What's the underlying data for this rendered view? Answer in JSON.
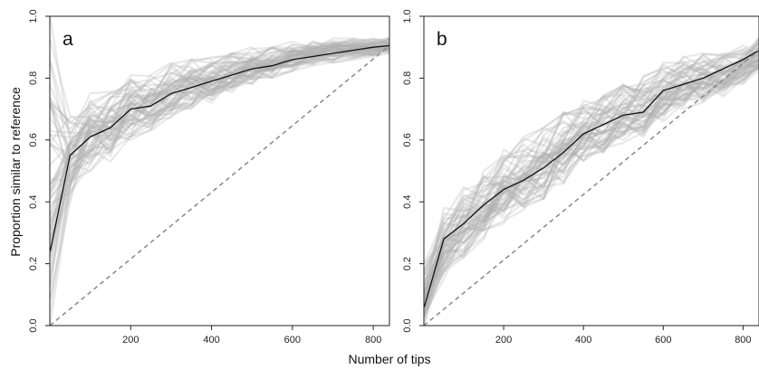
{
  "figure": {
    "xlabel": "Number of tips",
    "ylabel": "Proportion similar to reference"
  },
  "chart_data": [
    {
      "type": "line",
      "panel_label": "a",
      "xlim": [
        0,
        840
      ],
      "ylim": [
        0,
        1
      ],
      "x_ticks": [
        200,
        400,
        600,
        800
      ],
      "y_ticks": [
        0.0,
        0.2,
        0.4,
        0.6,
        0.8,
        1.0
      ],
      "x_tick_labels": [
        "200",
        "400",
        "600",
        "800"
      ],
      "y_tick_labels": [
        "0.0",
        "0.2",
        "0.4",
        "0.6",
        "0.8",
        "1.0"
      ],
      "grid": false,
      "colors": {
        "mean": "#111111",
        "replicates": "#b0b0b0",
        "diagonal": "#888888"
      },
      "series": [
        {
          "style": "mean",
          "x": [
            1,
            50,
            100,
            150,
            200,
            250,
            300,
            350,
            400,
            450,
            500,
            550,
            600,
            650,
            700,
            750,
            800,
            840
          ],
          "y": [
            0.24,
            0.55,
            0.61,
            0.64,
            0.7,
            0.71,
            0.75,
            0.77,
            0.79,
            0.81,
            0.83,
            0.84,
            0.86,
            0.87,
            0.88,
            0.89,
            0.9,
            0.905
          ]
        },
        {
          "style": "reference-diagonal",
          "x": [
            0,
            840
          ],
          "y": [
            0,
            0.905
          ]
        }
      ],
      "replicate_band": {
        "x": [
          1,
          50,
          100,
          150,
          200,
          250,
          300,
          350,
          400,
          450,
          500,
          550,
          600,
          650,
          700,
          750,
          800,
          840
        ],
        "low": [
          0.0,
          0.4,
          0.5,
          0.53,
          0.6,
          0.63,
          0.67,
          0.7,
          0.72,
          0.75,
          0.78,
          0.8,
          0.82,
          0.84,
          0.85,
          0.86,
          0.87,
          0.88
        ],
        "high": [
          1.0,
          0.72,
          0.76,
          0.77,
          0.81,
          0.82,
          0.85,
          0.86,
          0.87,
          0.88,
          0.9,
          0.9,
          0.92,
          0.92,
          0.93,
          0.93,
          0.93,
          0.93
        ],
        "count": 60
      }
    },
    {
      "type": "line",
      "panel_label": "b",
      "xlim": [
        0,
        840
      ],
      "ylim": [
        0,
        1
      ],
      "x_ticks": [
        200,
        400,
        600,
        800
      ],
      "y_ticks": [
        0.0,
        0.2,
        0.4,
        0.6,
        0.8,
        1.0
      ],
      "x_tick_labels": [
        "200",
        "400",
        "600",
        "800"
      ],
      "y_tick_labels": [
        "0.0",
        "0.2",
        "0.4",
        "0.6",
        "0.8",
        "1.0"
      ],
      "grid": false,
      "colors": {
        "mean": "#111111",
        "replicates": "#b0b0b0",
        "diagonal": "#888888"
      },
      "series": [
        {
          "style": "mean",
          "x": [
            1,
            50,
            100,
            150,
            200,
            250,
            300,
            350,
            400,
            450,
            500,
            550,
            600,
            650,
            700,
            750,
            800,
            840
          ],
          "y": [
            0.06,
            0.28,
            0.33,
            0.39,
            0.44,
            0.47,
            0.51,
            0.56,
            0.62,
            0.65,
            0.68,
            0.69,
            0.76,
            0.78,
            0.8,
            0.83,
            0.86,
            0.89
          ]
        },
        {
          "style": "reference-diagonal",
          "x": [
            0,
            840
          ],
          "y": [
            0,
            0.89
          ]
        }
      ],
      "replicate_band": {
        "x": [
          1,
          50,
          100,
          150,
          200,
          250,
          300,
          350,
          400,
          450,
          500,
          550,
          600,
          650,
          700,
          750,
          800,
          840
        ],
        "low": [
          0.0,
          0.15,
          0.22,
          0.28,
          0.33,
          0.37,
          0.41,
          0.46,
          0.52,
          0.56,
          0.59,
          0.61,
          0.66,
          0.7,
          0.72,
          0.74,
          0.78,
          0.82
        ],
        "high": [
          0.2,
          0.38,
          0.45,
          0.51,
          0.57,
          0.61,
          0.64,
          0.69,
          0.73,
          0.76,
          0.79,
          0.81,
          0.85,
          0.87,
          0.88,
          0.89,
          0.91,
          0.93
        ],
        "count": 60
      }
    }
  ]
}
